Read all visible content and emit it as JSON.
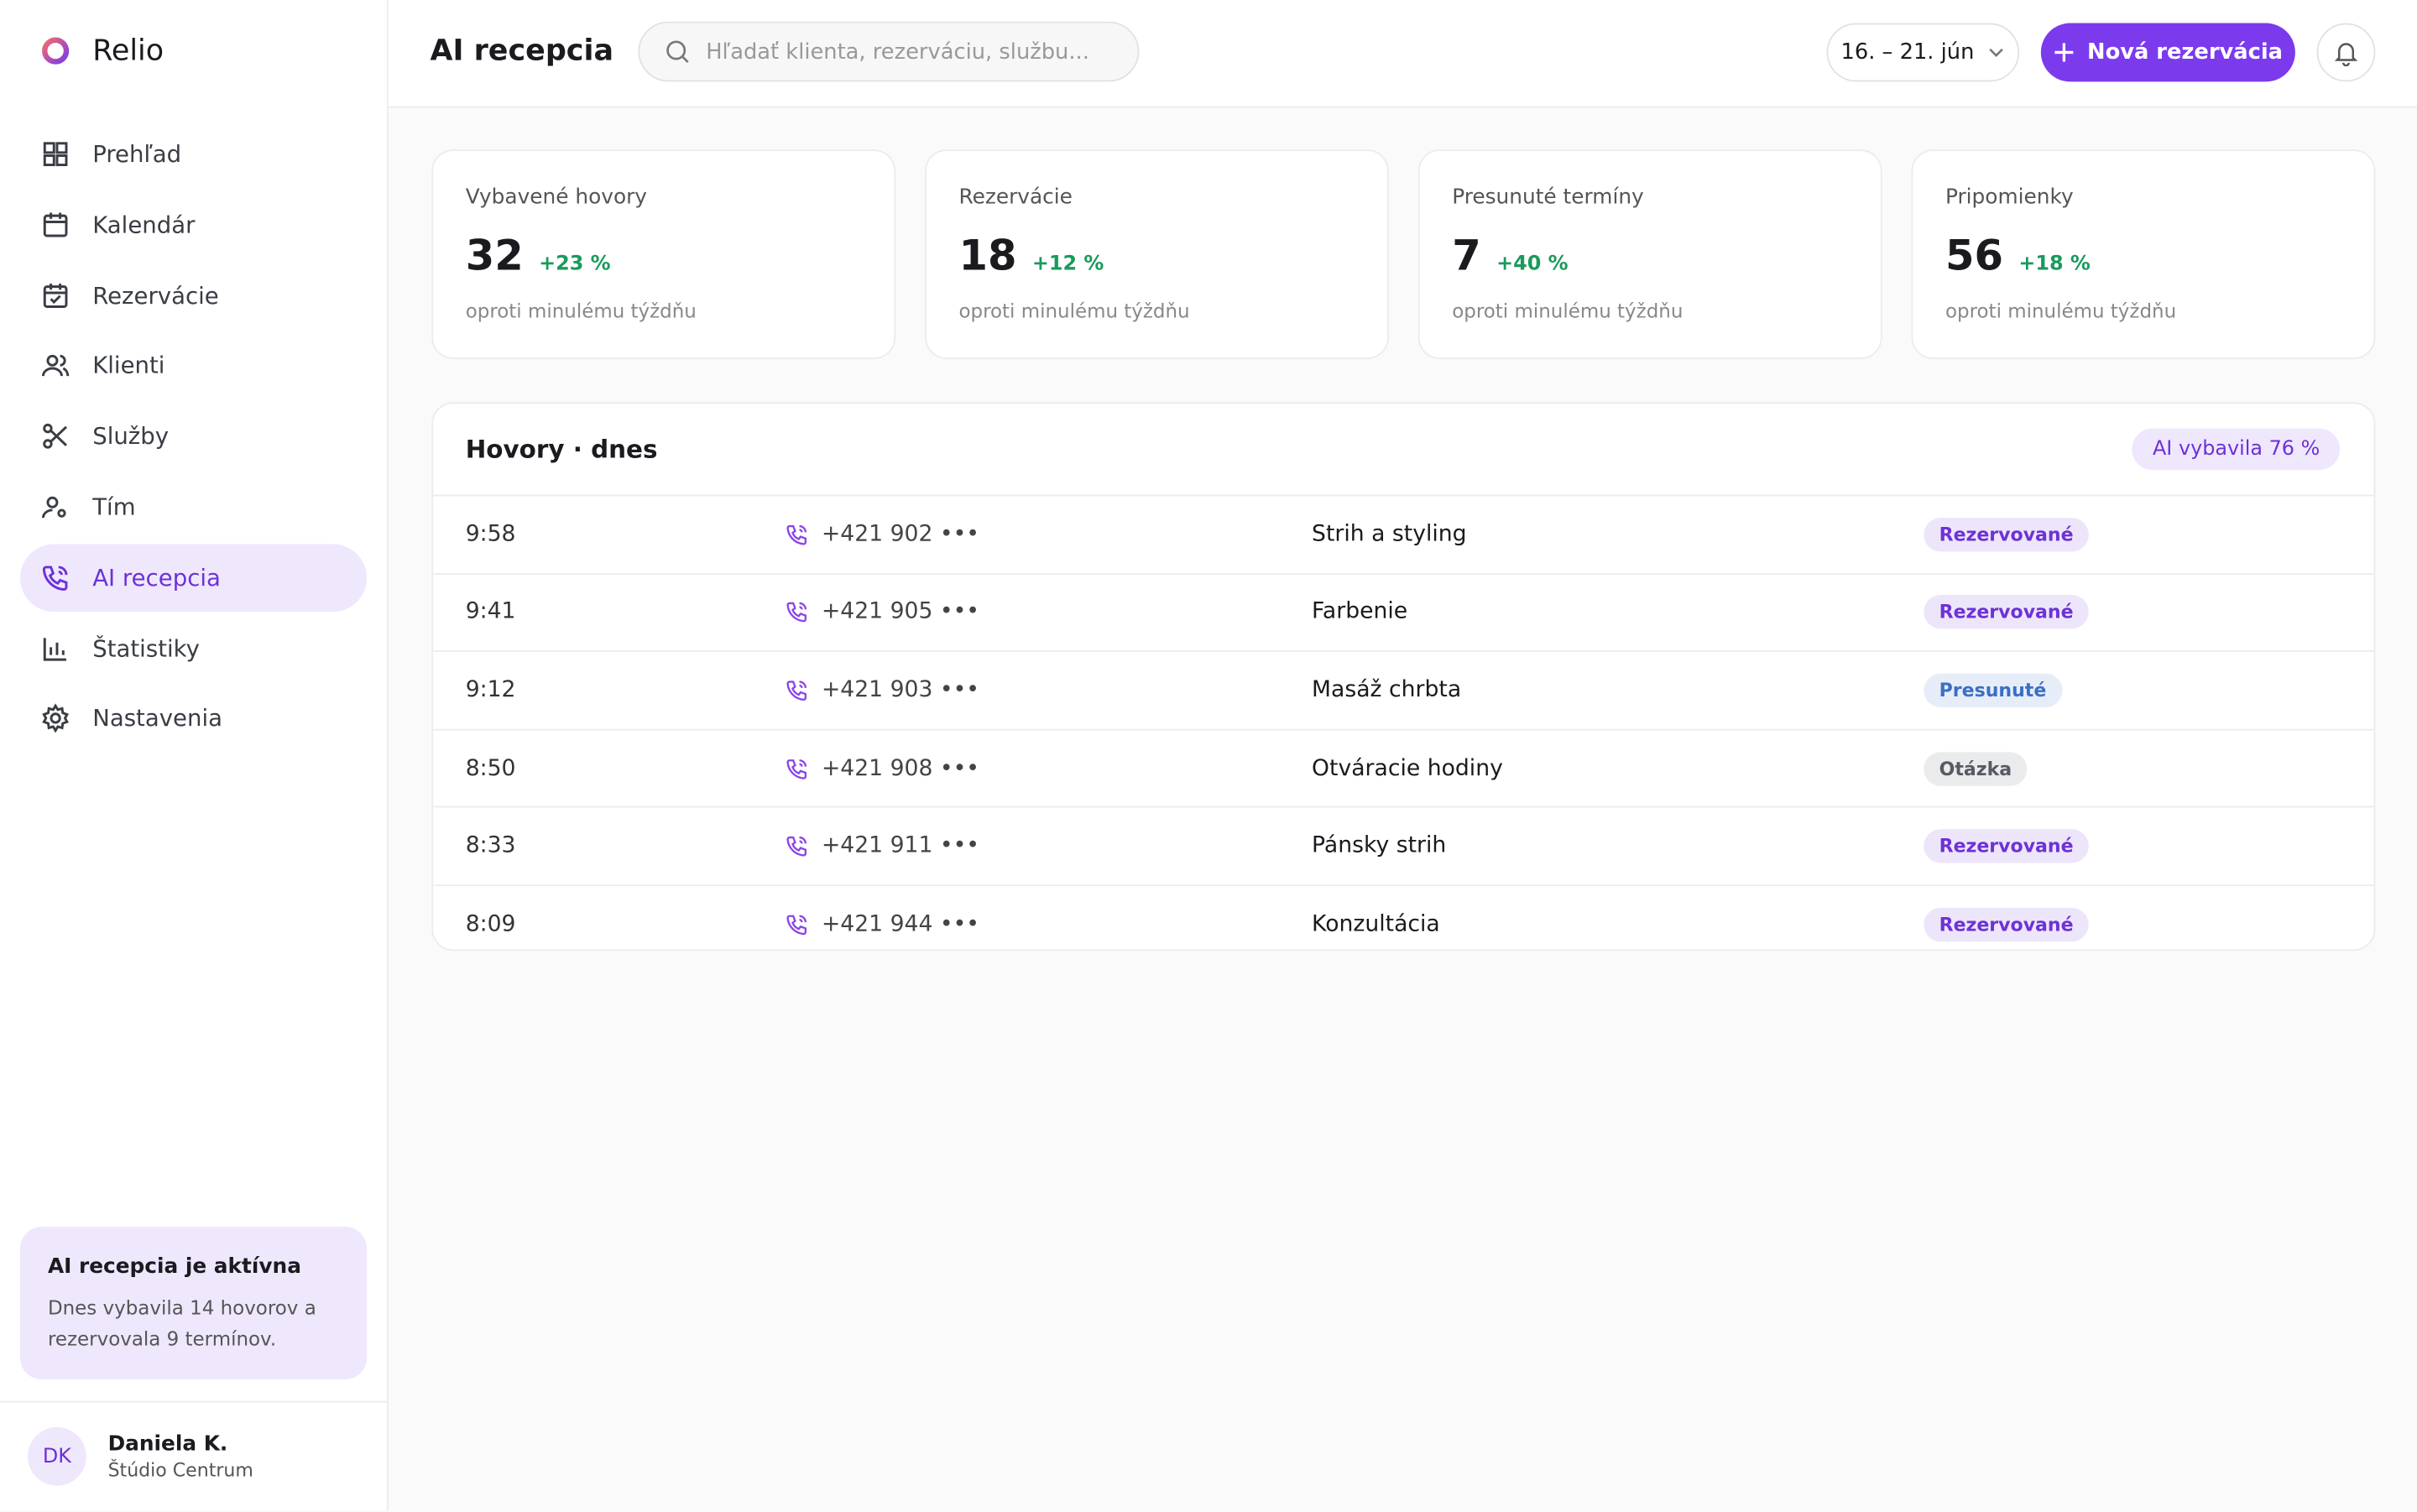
{
  "sidebar": {
    "brand": "Relio",
    "nav": [
      "Prehľad",
      "Kalendár",
      "Rezervácie",
      "Klienti",
      "Služby",
      "Tím",
      "AI recepcia",
      "Štatistiky",
      "Nastavenia"
    ],
    "active_index": 6,
    "promo": {
      "title": "AI recepcia je aktívna",
      "text": "Dnes vybavila 14 hovorov a rezervovala 9 termínov."
    },
    "user": {
      "initials": "DK",
      "name": "Daniela K.",
      "org": "Štúdio Centrum"
    }
  },
  "header": {
    "title": "AI recepcia",
    "search_placeholder": "Hľadať klienta, rezerváciu, službu...",
    "date_range": "16. – 21. jún",
    "new_button": "Nová rezervácia"
  },
  "stats": [
    {
      "label": "Vybavené hovory",
      "value": 32,
      "change": "+23 %",
      "note": "oproti minulému týždňu"
    },
    {
      "label": "Rezervácie",
      "value": 18,
      "change": "+12 %",
      "note": "oproti minulému týždňu"
    },
    {
      "label": "Presunuté termíny",
      "value": 7,
      "change": "+40 %",
      "note": "oproti minulému týždňu"
    },
    {
      "label": "Pripomienky",
      "value": 56,
      "change": "+18 %",
      "note": "oproti minulému týždňu"
    }
  ],
  "calls": {
    "title": "Hovory · dnes",
    "badge": "AI vybavila 76 %",
    "rows": [
      {
        "time": "9:58",
        "phone": "+421 902 •••",
        "service": "Strih a styling",
        "status": "Rezervované",
        "status_color": "#6d32d6"
      },
      {
        "time": "9:41",
        "phone": "+421 905 •••",
        "service": "Farbenie",
        "status": "Rezervované",
        "status_color": "#6d32d6"
      },
      {
        "time": "9:12",
        "phone": "+421 903 •••",
        "service": "Masáž chrbta",
        "status": "Presunuté",
        "status_color": "#3b6fc4"
      },
      {
        "time": "8:50",
        "phone": "+421 908 •••",
        "service": "Otváracie hodiny",
        "status": "Otázka",
        "status_color": "#555b63"
      },
      {
        "time": "8:33",
        "phone": "+421 911 •••",
        "service": "Pánsky strih",
        "status": "Rezervované",
        "status_color": "#6d32d6"
      },
      {
        "time": "8:09",
        "phone": "+421 944 •••",
        "service": "Konzultácia",
        "status": "Rezervované",
        "status_color": "#6d32d6"
      }
    ]
  }
}
